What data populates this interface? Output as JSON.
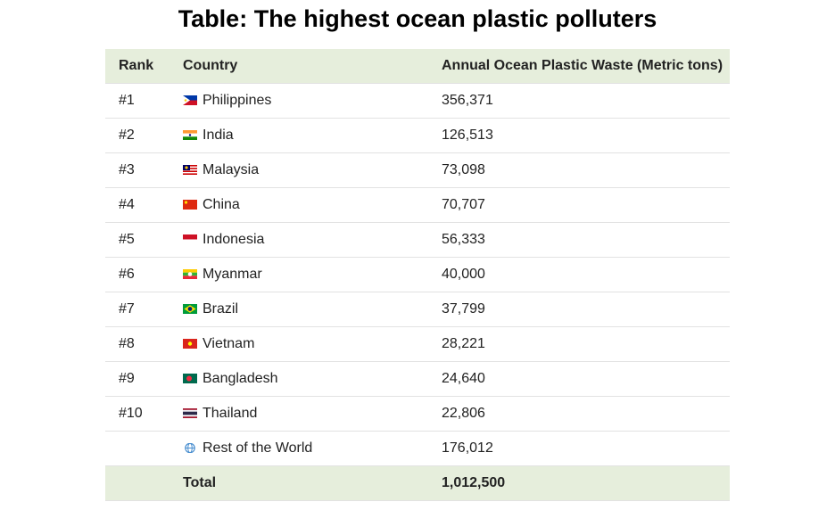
{
  "title": "Table: The highest ocean plastic polluters",
  "table": {
    "header": [
      "Rank",
      "Country",
      "Annual Ocean Plastic Waste (Metric tons)"
    ],
    "rows": [
      {
        "rank": "#1",
        "country": "Philippines",
        "waste": "356,371"
      },
      {
        "rank": "#2",
        "country": "India",
        "waste": "126,513"
      },
      {
        "rank": "#3",
        "country": "Malaysia",
        "waste": "73,098"
      },
      {
        "rank": "#4",
        "country": "China",
        "waste": "70,707"
      },
      {
        "rank": "#5",
        "country": "Indonesia",
        "waste": "56,333"
      },
      {
        "rank": "#6",
        "country": "Myanmar",
        "waste": "40,000"
      },
      {
        "rank": "#7",
        "country": "Brazil",
        "waste": "37,799"
      },
      {
        "rank": "#8",
        "country": "Vietnam",
        "waste": "28,221"
      },
      {
        "rank": "#9",
        "country": "Bangladesh",
        "waste": "24,640"
      },
      {
        "rank": "#10",
        "country": "Thailand",
        "waste": "22,806"
      },
      {
        "country": "Rest of the World",
        "waste": "176,012"
      }
    ],
    "total": {
      "label": "Total",
      "waste": "1,012,500"
    }
  }
}
